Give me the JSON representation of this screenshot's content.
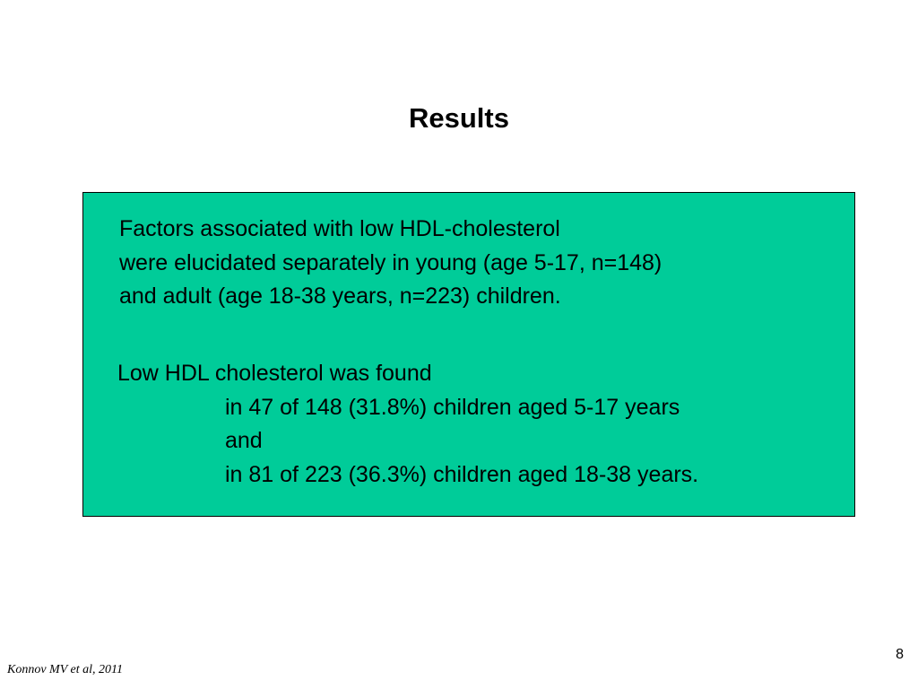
{
  "slide": {
    "title": "Results",
    "box_color": "#00CC99",
    "paragraph1": [
      "Factors associated with low HDL-cholesterol",
      "were  elucidated separately in young (age 5-17, n=148)",
      "and adult (age 18-38 years, n=223) children."
    ],
    "paragraph2": {
      "intro": "Low HDL cholesterol was found",
      "lines": [
        "in 47 of 148 (31.8%) children aged 5-17 years",
        "and",
        "in 81 of 223 (36.3%) children aged 18-38 years."
      ]
    },
    "citation": "Konnov MV et al, 2011",
    "page_number": "8"
  }
}
